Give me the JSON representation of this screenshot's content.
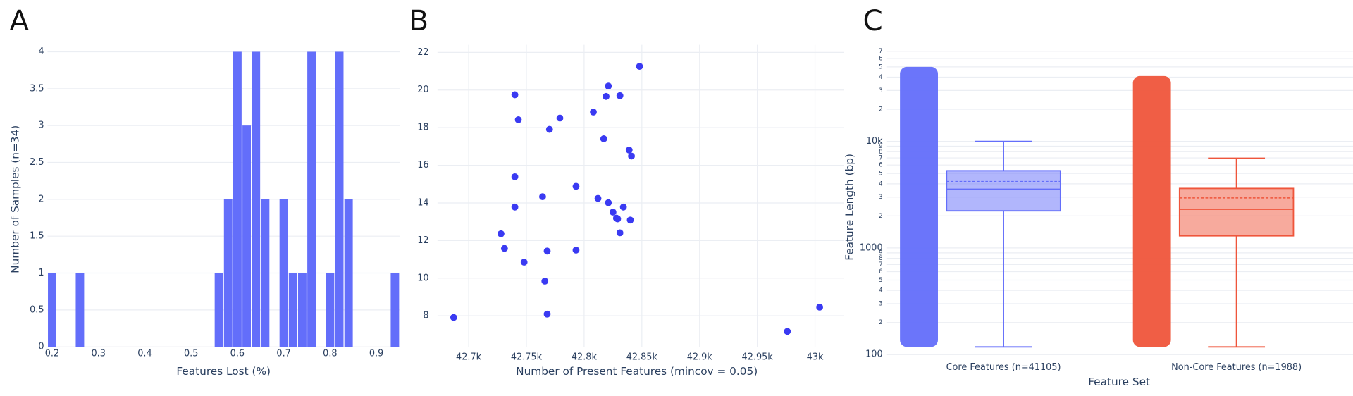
{
  "chart_data": [
    {
      "label": "A",
      "type": "histogram",
      "xlabel": "Features Lost (%)",
      "ylabel": "Number of Samples (n=34)",
      "bins": [
        0.19,
        0.21,
        0.23,
        0.25,
        0.27,
        0.29,
        0.31,
        0.33,
        0.35,
        0.37,
        0.39,
        0.41,
        0.43,
        0.45,
        0.47,
        0.49,
        0.51,
        0.53,
        0.55,
        0.57,
        0.59,
        0.61,
        0.63,
        0.65,
        0.67,
        0.69,
        0.71,
        0.73,
        0.75,
        0.77,
        0.79,
        0.81,
        0.83,
        0.85,
        0.87,
        0.89,
        0.91,
        0.93,
        0.95
      ],
      "counts": [
        1,
        0,
        0,
        1,
        0,
        0,
        0,
        0,
        0,
        0,
        0,
        0,
        0,
        0,
        0,
        0,
        0,
        0,
        1,
        2,
        4,
        3,
        4,
        2,
        0,
        2,
        1,
        1,
        4,
        0,
        1,
        4,
        2,
        0,
        0,
        0,
        0,
        1
      ],
      "color": "#636efa",
      "xlim": [
        0.19,
        0.95
      ],
      "ylim": [
        0,
        4
      ],
      "xticks": [
        0.2,
        0.3,
        0.4,
        0.5,
        0.6,
        0.7,
        0.8,
        0.9
      ],
      "yticks": [
        0,
        0.5,
        1,
        1.5,
        2,
        2.5,
        3,
        3.5,
        4
      ],
      "grid": "y"
    },
    {
      "label": "B",
      "type": "scatter",
      "xlabel": "Number of Present Features (mincov = 0.05)",
      "x": [
        42687,
        42728,
        42731,
        42740,
        42743,
        42740,
        42740,
        42748,
        42764,
        42766,
        42768,
        42768,
        42770,
        42779,
        42793,
        42793,
        42808,
        42812,
        42817,
        42819,
        42821,
        42821,
        42825,
        42828,
        42829,
        42831,
        42831,
        42834,
        42839,
        42840,
        42841,
        42848,
        42976,
        43004
      ],
      "y": [
        7.91,
        12.36,
        11.58,
        19.75,
        18.42,
        15.39,
        13.78,
        10.85,
        14.33,
        9.84,
        11.44,
        8.09,
        17.91,
        18.51,
        14.88,
        11.49,
        18.83,
        14.24,
        17.41,
        19.66,
        20.21,
        14.01,
        13.51,
        13.19,
        13.15,
        19.7,
        12.41,
        13.78,
        16.81,
        13.09,
        16.49,
        21.26,
        7.17,
        8.46
      ],
      "color": "#3a3af2",
      "xlim": [
        42673,
        43025
      ],
      "ylim": [
        6.35,
        22.4
      ],
      "xticks": [
        {
          "value": 42700,
          "label": "42.7k"
        },
        {
          "value": 42750,
          "label": "42.75k"
        },
        {
          "value": 42800,
          "label": "42.8k"
        },
        {
          "value": 42850,
          "label": "42.85k"
        },
        {
          "value": 42900,
          "label": "42.9k"
        },
        {
          "value": 42950,
          "label": "42.95k"
        },
        {
          "value": 43000,
          "label": "43k"
        }
      ],
      "yticks": [
        8,
        10,
        12,
        14,
        16,
        18,
        20,
        22
      ],
      "grid": "both"
    },
    {
      "label": "C",
      "type": "box",
      "xlabel": "Feature Set",
      "ylabel": "Feature Length (bp)",
      "categories": [
        "Core Features (n=41105)",
        "Non-Core Features (n=1988)"
      ],
      "boxes": [
        {
          "color": "#636efa",
          "min": 118,
          "lowerfence": 118,
          "q1": 2230,
          "median": 3560,
          "mean": 4200,
          "q3": 5300,
          "upperfence": 10000,
          "max": 50000
        },
        {
          "color": "#ef553b",
          "min": 118,
          "lowerfence": 118,
          "q1": 1300,
          "median": 2310,
          "mean": 2950,
          "q3": 3620,
          "upperfence": 6950,
          "max": 41000
        }
      ],
      "log_y": true,
      "ylim": [
        100,
        76000
      ],
      "yticks": [
        100,
        {
          "value": 200,
          "label": "2"
        },
        {
          "value": 300,
          "label": "3"
        },
        {
          "value": 400,
          "label": "4"
        },
        {
          "value": 500,
          "label": "5"
        },
        {
          "value": 600,
          "label": "6"
        },
        {
          "value": 700,
          "label": "7"
        },
        {
          "value": 800,
          "label": "8"
        },
        {
          "value": 900,
          "label": "9"
        },
        1000,
        {
          "value": 2000,
          "label": "2"
        },
        {
          "value": 3000,
          "label": "3"
        },
        {
          "value": 4000,
          "label": "4"
        },
        {
          "value": 5000,
          "label": "5"
        },
        {
          "value": 6000,
          "label": "6"
        },
        {
          "value": 7000,
          "label": "7"
        },
        {
          "value": 8000,
          "label": "8"
        },
        {
          "value": 9000,
          "label": "9"
        },
        {
          "value": 10000,
          "label": "10k"
        },
        {
          "value": 20000,
          "label": "2"
        },
        {
          "value": 30000,
          "label": "3"
        },
        {
          "value": 40000,
          "label": "4"
        },
        {
          "value": 50000,
          "label": "5"
        },
        {
          "value": 60000,
          "label": "6"
        },
        {
          "value": 70000,
          "label": "7"
        }
      ],
      "grid": "y"
    }
  ]
}
